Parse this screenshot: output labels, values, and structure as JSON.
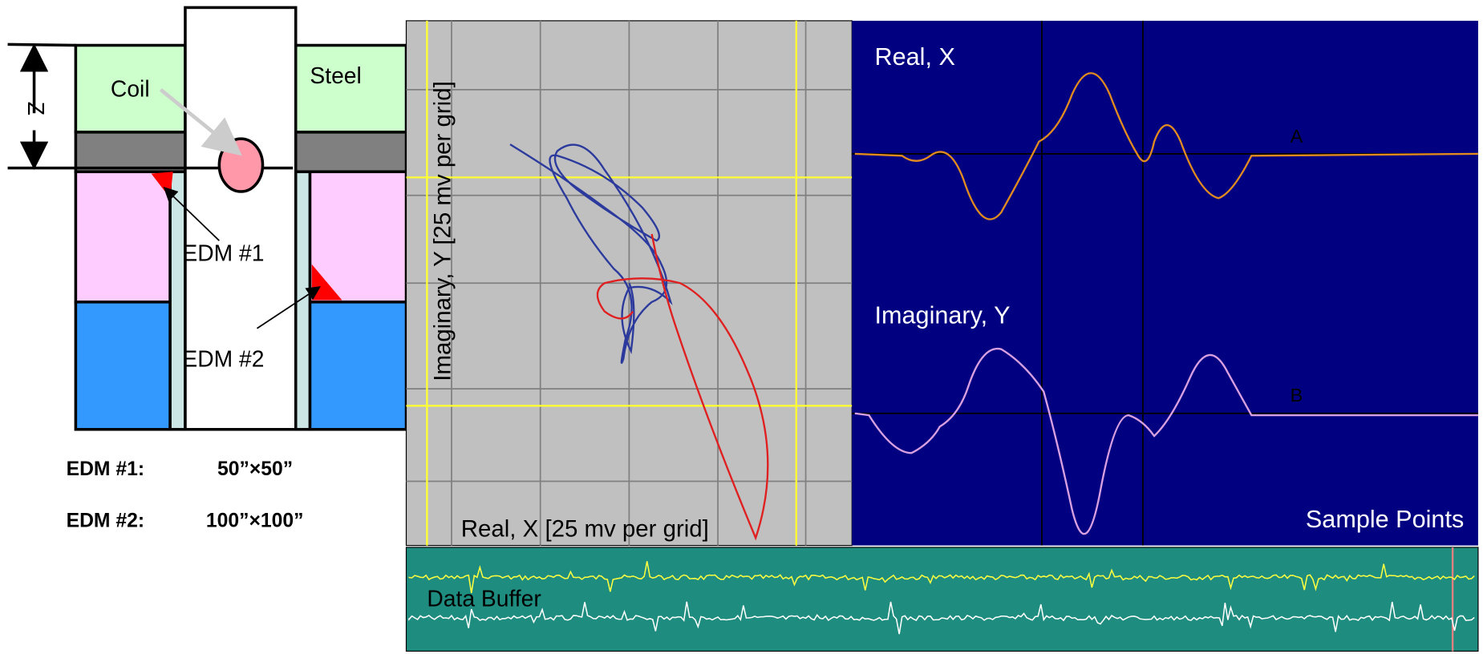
{
  "diagram": {
    "z_label": "Z",
    "coil": "Coil",
    "steel": "Steel",
    "edm1": "EDM #1",
    "edm2": "EDM #2",
    "specs": [
      {
        "name": "EDM #1:",
        "size": "50”×50”"
      },
      {
        "name": "EDM #2:",
        "size": "100”×100”"
      }
    ]
  },
  "lissajous": {
    "y_axis": "Imaginary, Y [25 mv per grid]",
    "x_axis": "Real, X [25 mv per grid]"
  },
  "traces": {
    "real": "Real, X",
    "real_marker": "A",
    "imaginary": "Imaginary, Y",
    "imaginary_marker": "B",
    "x_axis": "Sample Points"
  },
  "buffer": {
    "title": "Data Buffer"
  }
}
